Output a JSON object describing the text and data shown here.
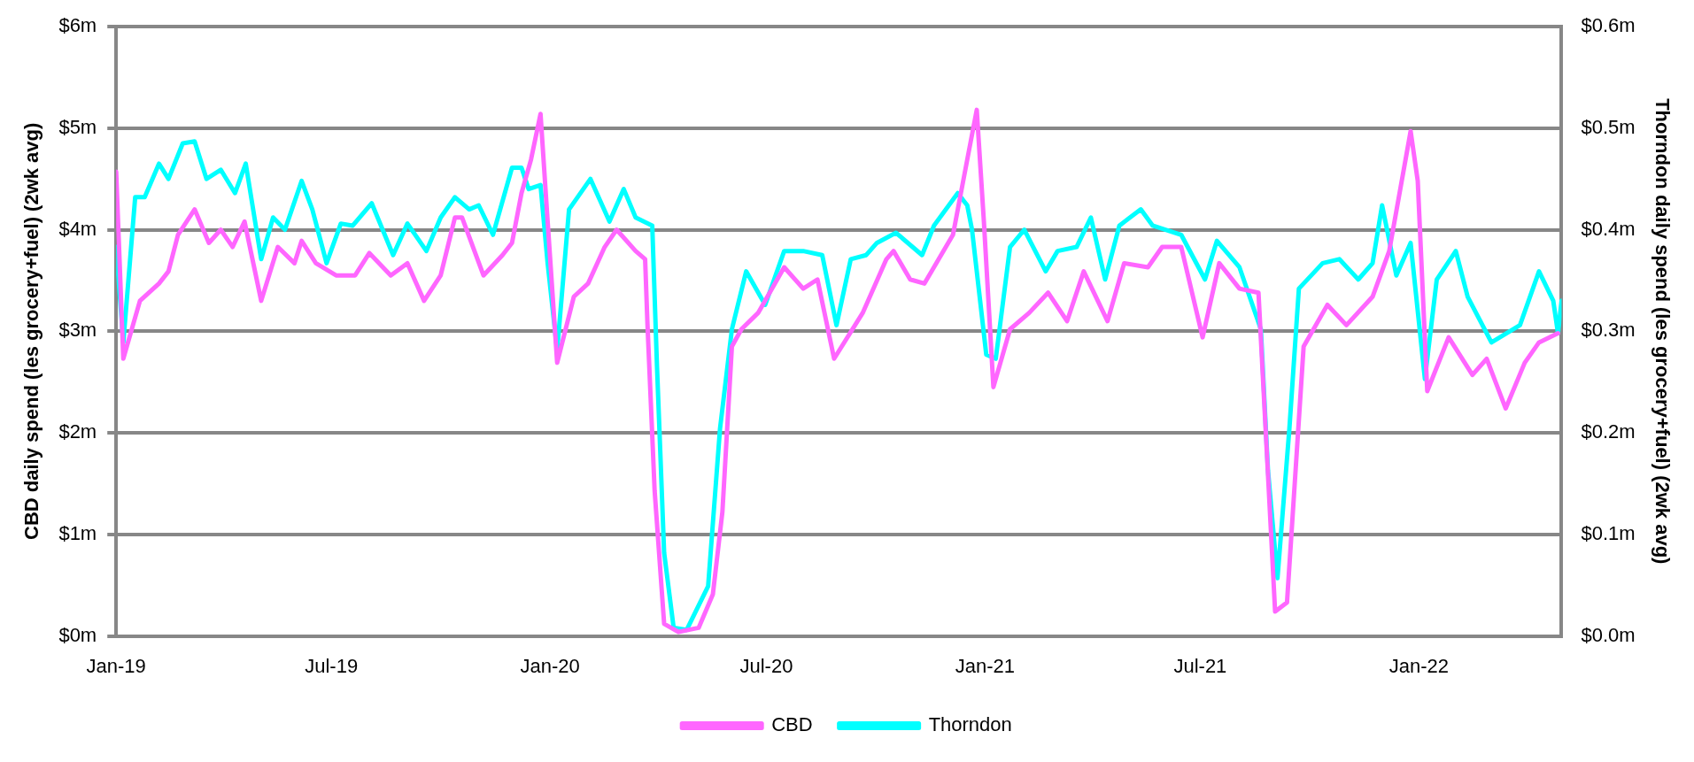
{
  "chart_data": {
    "type": "line",
    "ylabel": "CBD daily spend (les grocery+fuel) (2wk avg)",
    "y2label": "Thorndon daily spend (les grocery+fuel) (2wk avg)",
    "xlim": [
      "2019-01-01",
      "2022-05-01"
    ],
    "xticks": [
      {
        "value": "2019-01-01",
        "label": "Jan-19"
      },
      {
        "value": "2019-07-01",
        "label": "Jul-19"
      },
      {
        "value": "2020-01-01",
        "label": "Jan-20"
      },
      {
        "value": "2020-07-01",
        "label": "Jul-20"
      },
      {
        "value": "2021-01-01",
        "label": "Jan-21"
      },
      {
        "value": "2021-07-01",
        "label": "Jul-21"
      },
      {
        "value": "2022-01-01",
        "label": "Jan-22"
      }
    ],
    "ylim": [
      0,
      6
    ],
    "yticks": [
      {
        "value": 0,
        "label": "$0m"
      },
      {
        "value": 1,
        "label": "$1m"
      },
      {
        "value": 2,
        "label": "$2m"
      },
      {
        "value": 3,
        "label": "$3m"
      },
      {
        "value": 4,
        "label": "$4m"
      },
      {
        "value": 5,
        "label": "$5m"
      },
      {
        "value": 6,
        "label": "$6m"
      }
    ],
    "y2lim": [
      0,
      0.6
    ],
    "y2ticks": [
      {
        "value": 0,
        "label": "$0.0m"
      },
      {
        "value": 0.1,
        "label": "$0.1m"
      },
      {
        "value": 0.2,
        "label": "$0.2m"
      },
      {
        "value": 0.3,
        "label": "$0.3m"
      },
      {
        "value": 0.4,
        "label": "$0.4m"
      },
      {
        "value": 0.5,
        "label": "$0.5m"
      },
      {
        "value": 0.6,
        "label": "$0.6m"
      }
    ],
    "grid": "y",
    "legend": "bottom",
    "marker": "none",
    "line_style": "solid",
    "series": [
      {
        "name": "CBD",
        "color": "#ff66ff",
        "x": [
          "2019-01-01",
          "2019-01-07",
          "2019-01-21",
          "2019-02-06",
          "2019-02-14",
          "2019-02-22",
          "2019-03-08",
          "2019-03-20",
          "2019-03-30",
          "2019-04-09",
          "2019-04-19",
          "2019-05-03",
          "2019-05-17",
          "2019-05-31",
          "2019-06-06",
          "2019-06-18",
          "2019-07-05",
          "2019-07-21",
          "2019-08-02",
          "2019-08-20",
          "2019-09-03",
          "2019-09-17",
          "2019-10-01",
          "2019-10-13",
          "2019-10-19",
          "2019-11-06",
          "2019-11-22",
          "2019-11-30",
          "2019-12-08",
          "2019-12-16",
          "2019-12-24",
          "2019-12-30",
          "2020-01-07",
          "2020-01-21",
          "2020-02-02",
          "2020-02-16",
          "2020-02-26",
          "2020-03-13",
          "2020-03-21",
          "2020-03-23",
          "2020-03-29",
          "2020-04-06",
          "2020-04-18",
          "2020-05-05",
          "2020-05-17",
          "2020-05-25",
          "2020-06-02",
          "2020-06-10",
          "2020-06-24",
          "2020-07-16",
          "2020-08-01",
          "2020-08-13",
          "2020-08-27",
          "2020-09-20",
          "2020-10-10",
          "2020-10-16",
          "2020-10-30",
          "2020-11-11",
          "2020-11-23",
          "2020-12-05",
          "2020-12-17",
          "2020-12-25",
          "2020-12-31",
          "2021-01-08",
          "2021-01-22",
          "2021-02-07",
          "2021-02-23",
          "2021-03-11",
          "2021-03-25",
          "2021-04-14",
          "2021-04-28",
          "2021-05-18",
          "2021-05-30",
          "2021-06-15",
          "2021-07-03",
          "2021-07-17",
          "2021-08-03",
          "2021-08-19",
          "2021-08-25",
          "2021-09-02",
          "2021-09-12",
          "2021-09-26",
          "2021-10-16",
          "2021-11-01",
          "2021-11-23",
          "2021-12-07",
          "2021-12-25",
          "2021-12-31",
          "2022-01-08",
          "2022-01-26",
          "2022-02-15",
          "2022-02-27",
          "2022-03-15",
          "2022-03-31",
          "2022-04-12",
          "2022-04-28"
        ],
        "values": [
          4.57,
          2.73,
          3.3,
          3.47,
          3.59,
          3.95,
          4.2,
          3.87,
          4.0,
          3.83,
          4.08,
          3.3,
          3.83,
          3.67,
          3.89,
          3.67,
          3.55,
          3.55,
          3.77,
          3.55,
          3.67,
          3.3,
          3.55,
          4.12,
          4.12,
          3.55,
          3.75,
          3.87,
          4.36,
          4.69,
          5.14,
          4.08,
          2.69,
          3.34,
          3.47,
          3.83,
          4.0,
          3.79,
          3.71,
          3.06,
          1.43,
          0.12,
          0.04,
          0.08,
          0.41,
          1.22,
          2.85,
          3.02,
          3.18,
          3.63,
          3.42,
          3.51,
          2.73,
          3.18,
          3.71,
          3.79,
          3.51,
          3.47,
          3.71,
          3.95,
          4.69,
          5.18,
          4.08,
          2.45,
          3.02,
          3.18,
          3.38,
          3.1,
          3.59,
          3.1,
          3.67,
          3.63,
          3.83,
          3.83,
          2.94,
          3.67,
          3.42,
          3.38,
          2.04,
          0.24,
          0.33,
          2.85,
          3.26,
          3.06,
          3.34,
          3.79,
          4.97,
          4.48,
          2.41,
          2.94,
          2.57,
          2.73,
          2.24,
          2.69,
          2.89,
          2.98
        ]
      },
      {
        "name": "Thorndon",
        "color": "#00ffff",
        "axis": "y2",
        "x": [
          "2019-01-01",
          "2019-01-07",
          "2019-01-17",
          "2019-01-25",
          "2019-02-06",
          "2019-02-14",
          "2019-02-26",
          "2019-03-08",
          "2019-03-18",
          "2019-03-30",
          "2019-04-11",
          "2019-04-20",
          "2019-05-03",
          "2019-05-13",
          "2019-05-23",
          "2019-06-06",
          "2019-06-15",
          "2019-06-27",
          "2019-07-09",
          "2019-07-19",
          "2019-08-04",
          "2019-08-22",
          "2019-09-03",
          "2019-09-19",
          "2019-10-01",
          "2019-10-13",
          "2019-10-25",
          "2019-11-02",
          "2019-11-14",
          "2019-11-30",
          "2019-12-08",
          "2019-12-14",
          "2019-12-24",
          "2019-12-30",
          "2020-01-07",
          "2020-01-17",
          "2020-02-04",
          "2020-02-20",
          "2020-03-03",
          "2020-03-13",
          "2020-03-27",
          "2020-03-31",
          "2020-04-06",
          "2020-04-14",
          "2020-04-25",
          "2020-05-13",
          "2020-05-23",
          "2020-06-02",
          "2020-06-14",
          "2020-06-30",
          "2020-07-16",
          "2020-08-01",
          "2020-08-17",
          "2020-08-29",
          "2020-09-10",
          "2020-09-23",
          "2020-10-02",
          "2020-10-18",
          "2020-11-09",
          "2020-11-19",
          "2020-12-09",
          "2020-12-17",
          "2020-12-21",
          "2021-01-02",
          "2021-01-10",
          "2021-01-22",
          "2021-02-03",
          "2021-02-21",
          "2021-03-03",
          "2021-03-19",
          "2021-03-31",
          "2021-04-12",
          "2021-04-24",
          "2021-05-12",
          "2021-05-22",
          "2021-06-15",
          "2021-07-05",
          "2021-07-15",
          "2021-08-03",
          "2021-08-21",
          "2021-08-27",
          "2021-09-04",
          "2021-09-14",
          "2021-09-22",
          "2021-10-12",
          "2021-10-26",
          "2021-11-11",
          "2021-11-23",
          "2021-12-01",
          "2021-12-13",
          "2021-12-25",
          "2022-01-06",
          "2022-01-16",
          "2022-02-01",
          "2022-02-11",
          "2022-03-03",
          "2022-03-27",
          "2022-04-12",
          "2022-04-24",
          "2022-04-28",
          "2022-05-01"
        ],
        "values": [
          0.383,
          0.289,
          0.432,
          0.432,
          0.465,
          0.45,
          0.485,
          0.487,
          0.45,
          0.459,
          0.436,
          0.465,
          0.371,
          0.412,
          0.4,
          0.448,
          0.42,
          0.367,
          0.406,
          0.404,
          0.426,
          0.375,
          0.406,
          0.379,
          0.412,
          0.432,
          0.42,
          0.424,
          0.395,
          0.461,
          0.461,
          0.44,
          0.444,
          0.367,
          0.281,
          0.42,
          0.45,
          0.408,
          0.44,
          0.412,
          0.404,
          0.265,
          0.082,
          0.008,
          0.006,
          0.049,
          0.204,
          0.302,
          0.359,
          0.326,
          0.379,
          0.379,
          0.375,
          0.306,
          0.371,
          0.375,
          0.387,
          0.397,
          0.375,
          0.404,
          0.436,
          0.424,
          0.4,
          0.277,
          0.273,
          0.383,
          0.4,
          0.359,
          0.379,
          0.383,
          0.412,
          0.351,
          0.404,
          0.42,
          0.404,
          0.395,
          0.351,
          0.389,
          0.363,
          0.302,
          0.163,
          0.057,
          0.204,
          0.342,
          0.367,
          0.371,
          0.351,
          0.367,
          0.424,
          0.355,
          0.387,
          0.253,
          0.351,
          0.379,
          0.334,
          0.289,
          0.306,
          0.359,
          0.33,
          0.298,
          0.33
        ]
      }
    ]
  }
}
